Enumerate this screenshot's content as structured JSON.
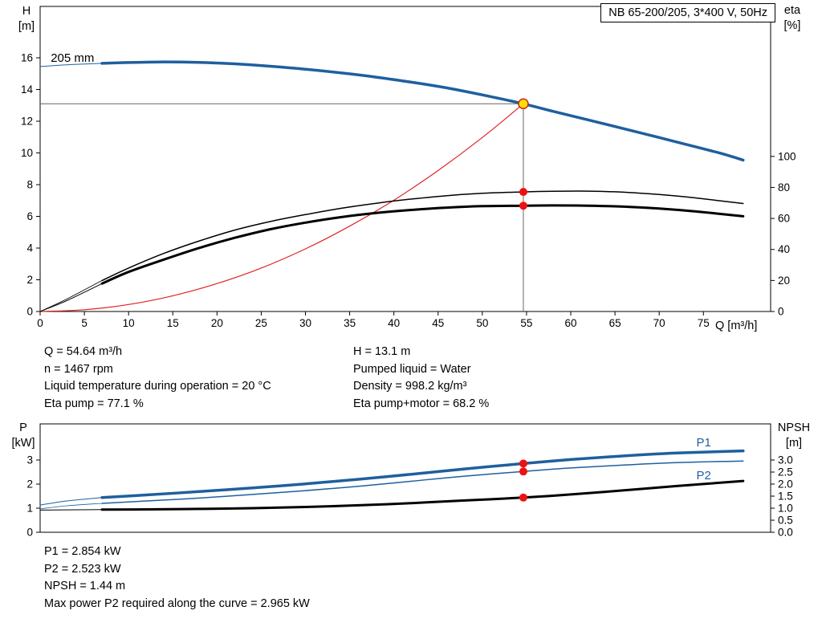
{
  "info_top": {
    "col1": [
      "Q = 54.64 m³/h",
      "n = 1467 rpm",
      "Liquid temperature during operation = 20 °C",
      "Eta pump = 77.1 %"
    ],
    "col2": [
      "H = 13.1 m",
      "Pumped liquid = Water",
      "Density = 998.2 kg/m³",
      "Eta pump+motor = 68.2 %"
    ]
  },
  "info_bottom": [
    "P1 = 2.854 kW",
    "P2 = 2.523 kW",
    "NPSH = 1.44 m",
    "Max power P2 required along the curve = 2.965 kW"
  ],
  "colors": {
    "curve_blue": "#1f5f9e",
    "curve_black": "#000000",
    "curve_red": "#e02424",
    "marker_red": "#ee1111",
    "marker_yellow": "#ffe000",
    "guide_gray": "#666666"
  },
  "chart_data": [
    {
      "type": "line",
      "name": "hq-efficiency-chart",
      "title": "NB 65-200/205, 3*400 V, 50Hz",
      "x_axis": {
        "label": "Q [m³/h]",
        "min": 0,
        "max": 82.6,
        "ticks": [
          0,
          5,
          10,
          15,
          20,
          25,
          30,
          35,
          40,
          45,
          50,
          55,
          60,
          65,
          70,
          75
        ]
      },
      "y_left": {
        "label": "H",
        "unit": "[m]",
        "min": 0,
        "max": 19.24,
        "ticks": [
          0,
          2,
          4,
          6,
          8,
          10,
          12,
          14,
          16
        ]
      },
      "y_right": {
        "label": "eta",
        "unit": "[%]",
        "min": 0,
        "max": 196.7,
        "ticks": [
          0,
          20,
          40,
          60,
          80,
          100
        ]
      },
      "series": [
        {
          "name": "system-curve",
          "axis": "left",
          "color": "#e02424",
          "width": 1.2,
          "points": [
            [
              0,
              0
            ],
            [
              5,
              0.11
            ],
            [
              10,
              0.44
            ],
            [
              15,
              0.99
            ],
            [
              20,
              1.76
            ],
            [
              25,
              2.74
            ],
            [
              30,
              3.95
            ],
            [
              35,
              5.38
            ],
            [
              40,
              7.02
            ],
            [
              45,
              8.89
            ],
            [
              50,
              10.97
            ],
            [
              54.64,
              13.1
            ]
          ]
        },
        {
          "name": "eta-pump-curve",
          "axis": "right",
          "color": "#000000",
          "width": 1.5,
          "thin_until": 7,
          "thin_width": 0.8,
          "points": [
            [
              0,
              0
            ],
            [
              3,
              8
            ],
            [
              7,
              20
            ],
            [
              10,
              28
            ],
            [
              14,
              37.5
            ],
            [
              18,
              45.5
            ],
            [
              22,
              52.5
            ],
            [
              26,
              58
            ],
            [
              30,
              62.5
            ],
            [
              34,
              66.5
            ],
            [
              38,
              69.8
            ],
            [
              42,
              72.5
            ],
            [
              46,
              74.7
            ],
            [
              50,
              76.2
            ],
            [
              54.64,
              77.1
            ],
            [
              58,
              77.5
            ],
            [
              62,
              77.6
            ],
            [
              66,
              76.9
            ],
            [
              70,
              75.4
            ],
            [
              74,
              73.3
            ],
            [
              79.5,
              69.6
            ]
          ]
        },
        {
          "name": "eta-pump-motor-curve",
          "axis": "right",
          "color": "#000000",
          "width": 3,
          "thin_until": 7,
          "thin_width": 1,
          "points": [
            [
              0,
              0
            ],
            [
              3,
              7
            ],
            [
              7,
              18
            ],
            [
              10,
              25.5
            ],
            [
              14,
              33.5
            ],
            [
              18,
              41
            ],
            [
              22,
              47.5
            ],
            [
              26,
              53
            ],
            [
              30,
              57.3
            ],
            [
              34,
              60.8
            ],
            [
              38,
              63.5
            ],
            [
              42,
              65.5
            ],
            [
              46,
              67
            ],
            [
              50,
              67.9
            ],
            [
              54.64,
              68.2
            ],
            [
              58,
              68.4
            ],
            [
              62,
              68.2
            ],
            [
              66,
              67.6
            ],
            [
              70,
              66.4
            ],
            [
              74,
              64.6
            ],
            [
              79.5,
              61.4
            ]
          ]
        },
        {
          "name": "head-curve-205mm",
          "axis": "left",
          "color": "#1f5f9e",
          "width": 3.5,
          "thin_until": 7,
          "thin_width": 1,
          "points": [
            [
              0,
              15.45
            ],
            [
              3,
              15.56
            ],
            [
              7,
              15.65
            ],
            [
              10,
              15.7
            ],
            [
              14,
              15.74
            ],
            [
              18,
              15.71
            ],
            [
              22,
              15.62
            ],
            [
              26,
              15.47
            ],
            [
              30,
              15.28
            ],
            [
              34,
              15.05
            ],
            [
              38,
              14.78
            ],
            [
              42,
              14.46
            ],
            [
              46,
              14.1
            ],
            [
              50,
              13.66
            ],
            [
              54.64,
              13.1
            ],
            [
              58,
              12.62
            ],
            [
              62,
              12.08
            ],
            [
              66,
              11.53
            ],
            [
              70,
              10.97
            ],
            [
              74,
              10.4
            ],
            [
              77,
              9.97
            ],
            [
              79.5,
              9.55
            ]
          ]
        }
      ],
      "guides": [
        {
          "type": "v",
          "name": "duty-guide-vertical",
          "x": 54.64,
          "from": 0,
          "to": 13.1
        },
        {
          "type": "h",
          "name": "duty-guide-horizontal",
          "y": 13.1,
          "from": 0,
          "to": 54.64
        }
      ],
      "markers": [
        {
          "name": "duty-point",
          "x": 54.64,
          "y": 13.1,
          "axis": "left",
          "r": 6,
          "fill": "#ffe000",
          "stroke": "#cc2222",
          "interactable": true
        },
        {
          "name": "eta-pump-point",
          "x": 54.64,
          "y": 77.1,
          "axis": "right",
          "r": 5,
          "fill": "#ee1111"
        },
        {
          "name": "eta-pump-motor-point",
          "x": 54.64,
          "y": 68.2,
          "axis": "right",
          "r": 5,
          "fill": "#ee1111"
        }
      ],
      "labels": [
        {
          "name": "impeller-size-label",
          "text": "205 mm",
          "x": 1.2,
          "y": 16.0,
          "axis": "left",
          "color": "#000000"
        }
      ]
    },
    {
      "type": "line",
      "name": "power-npsh-chart",
      "x_axis": {
        "label": "",
        "min": 0,
        "max": 82.6,
        "ticks": []
      },
      "y_left": {
        "label": "P",
        "unit": "[kW]",
        "min": 0,
        "max": 4.5,
        "ticks": [
          0,
          1,
          2,
          3
        ]
      },
      "y_right": {
        "label": "NPSH",
        "unit": "[m]",
        "min": 0,
        "max": 4.5,
        "ticks": [
          {
            "v": 0,
            "t": "0.0"
          },
          {
            "v": 0.5,
            "t": "0.5"
          },
          {
            "v": 1,
            "t": "1.0"
          },
          {
            "v": 1.5,
            "t": "1.5"
          },
          {
            "v": 2,
            "t": "2.0"
          },
          {
            "v": 2.5,
            "t": "2.5"
          },
          {
            "v": 3,
            "t": "3.0"
          }
        ]
      },
      "series": [
        {
          "name": "p1-power-curve",
          "axis": "left",
          "color": "#1f5f9e",
          "width": 3.5,
          "thin_until": 7,
          "thin_width": 1,
          "points": [
            [
              0,
              1.13
            ],
            [
              3,
              1.3
            ],
            [
              7,
              1.44
            ],
            [
              12,
              1.55
            ],
            [
              18,
              1.69
            ],
            [
              24,
              1.84
            ],
            [
              30,
              2.01
            ],
            [
              36,
              2.2
            ],
            [
              42,
              2.41
            ],
            [
              48,
              2.63
            ],
            [
              54.64,
              2.854
            ],
            [
              60,
              3.02
            ],
            [
              66,
              3.17
            ],
            [
              72,
              3.29
            ],
            [
              79.5,
              3.38
            ]
          ]
        },
        {
          "name": "p2-power-curve",
          "axis": "left",
          "color": "#1f5f9e",
          "width": 1.5,
          "thin_until": 7,
          "thin_width": 0.8,
          "points": [
            [
              0,
              0.97
            ],
            [
              3,
              1.1
            ],
            [
              7,
              1.2
            ],
            [
              12,
              1.3
            ],
            [
              18,
              1.42
            ],
            [
              24,
              1.57
            ],
            [
              30,
              1.73
            ],
            [
              36,
              1.91
            ],
            [
              42,
              2.12
            ],
            [
              48,
              2.33
            ],
            [
              54.64,
              2.523
            ],
            [
              60,
              2.67
            ],
            [
              66,
              2.79
            ],
            [
              72,
              2.89
            ],
            [
              79.5,
              2.96
            ]
          ]
        },
        {
          "name": "npsh-curve",
          "axis": "right",
          "color": "#000000",
          "width": 3,
          "thin_until": 7,
          "thin_width": 1,
          "points": [
            [
              0,
              0.92
            ],
            [
              7,
              0.94
            ],
            [
              12,
              0.95
            ],
            [
              18,
              0.97
            ],
            [
              24,
              1.0
            ],
            [
              30,
              1.05
            ],
            [
              36,
              1.12
            ],
            [
              42,
              1.21
            ],
            [
              48,
              1.32
            ],
            [
              54.64,
              1.44
            ],
            [
              60,
              1.57
            ],
            [
              66,
              1.74
            ],
            [
              72,
              1.92
            ],
            [
              79.5,
              2.13
            ]
          ]
        }
      ],
      "guides": [],
      "markers": [
        {
          "name": "p1-duty-point",
          "x": 54.64,
          "y": 2.854,
          "axis": "left",
          "r": 5,
          "fill": "#ee1111"
        },
        {
          "name": "p2-duty-point",
          "x": 54.64,
          "y": 2.523,
          "axis": "left",
          "r": 5,
          "fill": "#ee1111"
        },
        {
          "name": "npsh-duty-point",
          "x": 54.64,
          "y": 1.44,
          "axis": "right",
          "r": 5,
          "fill": "#ee1111"
        }
      ],
      "labels": [
        {
          "name": "p1-curve-label",
          "text": "P1",
          "x": 74.2,
          "y": 3.73,
          "axis": "left",
          "color": "#1f5f9e"
        },
        {
          "name": "p2-curve-label",
          "text": "P2",
          "x": 74.2,
          "y": 2.37,
          "axis": "left",
          "color": "#1f5f9e"
        }
      ]
    }
  ]
}
